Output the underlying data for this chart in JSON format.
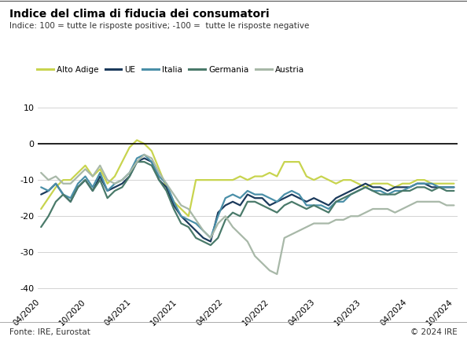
{
  "title": "Indice del clima di fiducia dei consumatori",
  "subtitle": "Indice: 100 = tutte le risposte positive; -100 =  tutte le risposte negative",
  "source": "Fonte: IRE, Eurostat",
  "copyright": "© 2024 IRE",
  "ylim": [
    -42,
    15
  ],
  "yticks": [
    -40,
    -30,
    -20,
    -10,
    0,
    10
  ],
  "x_labels": [
    "04/2020",
    "10/2020",
    "04/2021",
    "10/2021",
    "04/2022",
    "10/2022",
    "04/2023",
    "10/2023",
    "04/2024",
    "10/2024"
  ],
  "series": {
    "Alto Adige": {
      "color": "#c8d44e",
      "linewidth": 1.6,
      "values": [
        -18,
        -15,
        -12,
        -10,
        -10,
        -8,
        -6,
        -9,
        -7,
        -11,
        -9,
        -5,
        -1,
        1,
        0,
        -2,
        -7,
        -12,
        -16,
        -18,
        -20,
        -10,
        -10,
        -10,
        -10,
        -10,
        -10,
        -9,
        -10,
        -9,
        -9,
        -8,
        -9,
        -5,
        -5,
        -5,
        -9,
        -10,
        -9,
        -10,
        -11,
        -10,
        -10,
        -11,
        -12,
        -11,
        -11,
        -11,
        -12,
        -11,
        -11,
        -10,
        -10,
        -11,
        -11,
        -11,
        -11
      ]
    },
    "UE": {
      "color": "#1b3a5c",
      "linewidth": 1.6,
      "values": [
        -14,
        -13,
        -11,
        -14,
        -16,
        -12,
        -10,
        -13,
        -9,
        -13,
        -12,
        -11,
        -9,
        -5,
        -4,
        -5,
        -10,
        -12,
        -17,
        -20,
        -22,
        -24,
        -26,
        -27,
        -19,
        -17,
        -16,
        -17,
        -14,
        -15,
        -15,
        -17,
        -16,
        -15,
        -14,
        -15,
        -16,
        -15,
        -16,
        -17,
        -15,
        -14,
        -13,
        -12,
        -11,
        -12,
        -12,
        -13,
        -12,
        -12,
        -12,
        -11,
        -11,
        -12,
        -12,
        -12,
        -12
      ]
    },
    "Italia": {
      "color": "#4a8fa8",
      "linewidth": 1.6,
      "values": [
        -12,
        -13,
        -11,
        -14,
        -15,
        -11,
        -9,
        -12,
        -8,
        -13,
        -11,
        -10,
        -8,
        -4,
        -3,
        -5,
        -9,
        -11,
        -16,
        -20,
        -21,
        -22,
        -24,
        -26,
        -20,
        -15,
        -14,
        -15,
        -13,
        -14,
        -14,
        -15,
        -16,
        -14,
        -13,
        -14,
        -17,
        -17,
        -17,
        -18,
        -16,
        -16,
        -14,
        -13,
        -12,
        -13,
        -13,
        -14,
        -13,
        -13,
        -12,
        -11,
        -11,
        -11,
        -12,
        -12,
        -12
      ]
    },
    "Germania": {
      "color": "#4a7a6a",
      "linewidth": 1.6,
      "values": [
        -23,
        -20,
        -16,
        -14,
        -16,
        -12,
        -10,
        -13,
        -10,
        -15,
        -13,
        -12,
        -9,
        -5,
        -5,
        -6,
        -10,
        -13,
        -18,
        -22,
        -23,
        -26,
        -27,
        -28,
        -26,
        -21,
        -19,
        -20,
        -16,
        -16,
        -17,
        -18,
        -19,
        -17,
        -16,
        -17,
        -18,
        -17,
        -18,
        -19,
        -16,
        -15,
        -14,
        -13,
        -12,
        -13,
        -14,
        -14,
        -14,
        -13,
        -13,
        -12,
        -12,
        -13,
        -12,
        -13,
        -13
      ]
    },
    "Austria": {
      "color": "#a8b8a8",
      "linewidth": 1.6,
      "values": [
        -8,
        -10,
        -9,
        -11,
        -11,
        -9,
        -7,
        -9,
        -6,
        -10,
        -11,
        -10,
        -8,
        -5,
        -3,
        -4,
        -8,
        -11,
        -14,
        -17,
        -18,
        -21,
        -24,
        -26,
        -22,
        -20,
        -23,
        -25,
        -27,
        -31,
        -33,
        -35,
        -36,
        -26,
        -25,
        -24,
        -23,
        -22,
        -22,
        -22,
        -21,
        -21,
        -20,
        -20,
        -19,
        -18,
        -18,
        -18,
        -19,
        -18,
        -17,
        -16,
        -16,
        -16,
        -16,
        -17,
        -17
      ]
    }
  },
  "n_points": 57,
  "series_order": [
    "Alto Adige",
    "UE",
    "Italia",
    "Germania",
    "Austria"
  ]
}
